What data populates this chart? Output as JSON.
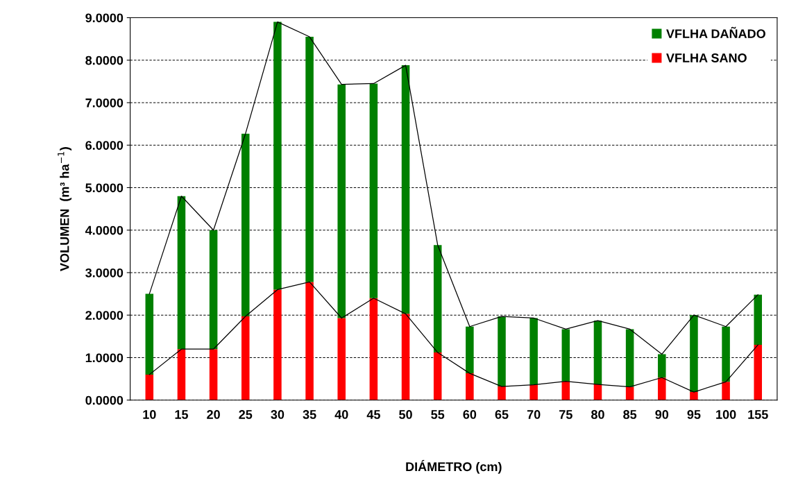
{
  "chart_data": {
    "type": "bar",
    "stacked": true,
    "xlabel": "DIÁMETRO (cm)",
    "ylabel": "VOLUMEN  (m³ ha$^{−1}$)",
    "categories": [
      "10",
      "15",
      "20",
      "25",
      "30",
      "35",
      "40",
      "45",
      "50",
      "55",
      "60",
      "65",
      "70",
      "75",
      "80",
      "85",
      "90",
      "95",
      "100",
      "155"
    ],
    "series": [
      {
        "name": "VFLHA SANO",
        "color": "#ff0000",
        "values": [
          0.6,
          1.2,
          1.2,
          1.97,
          2.6,
          2.78,
          1.93,
          2.4,
          2.03,
          1.12,
          0.63,
          0.32,
          0.36,
          0.44,
          0.37,
          0.31,
          0.53,
          0.19,
          0.43,
          1.3
        ]
      },
      {
        "name": "VFLHA DAÑADO",
        "color": "#008000",
        "values": [
          1.9,
          3.6,
          2.8,
          4.3,
          6.3,
          5.77,
          5.5,
          5.05,
          5.85,
          2.53,
          1.1,
          1.65,
          1.57,
          1.23,
          1.5,
          1.36,
          0.55,
          1.81,
          1.3,
          1.18
        ]
      },
      {
        "type": "line",
        "color": "#000000",
        "values": [
          0.6,
          1.2,
          1.2,
          1.97,
          2.6,
          2.78,
          1.93,
          2.4,
          2.03,
          1.12,
          0.63,
          0.32,
          0.36,
          0.44,
          0.37,
          0.31,
          0.53,
          0.19,
          0.43,
          1.3
        ]
      },
      {
        "type": "line",
        "color": "#000000",
        "values": [
          2.5,
          4.8,
          4.0,
          6.27,
          8.9,
          8.55,
          7.43,
          7.45,
          7.88,
          3.65,
          1.73,
          1.97,
          1.93,
          1.67,
          1.87,
          1.67,
          1.08,
          2.0,
          1.73,
          2.48
        ]
      }
    ],
    "ylim": [
      0,
      9
    ],
    "yticks": [
      {
        "value": 0,
        "label": "0.0000"
      },
      {
        "value": 1,
        "label": "1.0000"
      },
      {
        "value": 2,
        "label": "2.0000"
      },
      {
        "value": 3,
        "label": "3.0000"
      },
      {
        "value": 4,
        "label": "4.0000"
      },
      {
        "value": 5,
        "label": "5.0000"
      },
      {
        "value": 6,
        "label": "6.0000"
      },
      {
        "value": 7,
        "label": "7.0000"
      },
      {
        "value": 8,
        "label": "8.0000"
      },
      {
        "value": 9,
        "label": "9.0000"
      }
    ],
    "grid": "y",
    "legend": "top right",
    "line_style": "solid",
    "marker": "none"
  }
}
